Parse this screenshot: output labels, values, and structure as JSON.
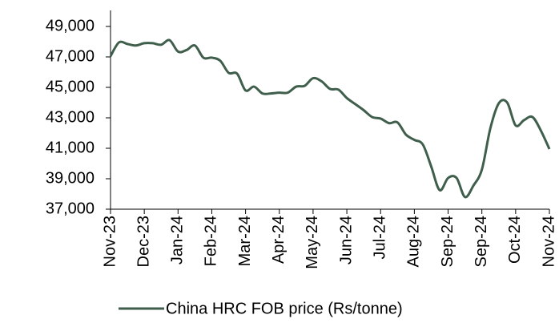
{
  "chart_data": {
    "type": "line",
    "categories": [
      "Nov-23",
      null,
      null,
      null,
      "Dec-23",
      null,
      null,
      null,
      "Jan-24",
      null,
      null,
      null,
      "Feb-24",
      null,
      null,
      null,
      "Mar-24",
      null,
      null,
      null,
      "Apr-24",
      null,
      null,
      null,
      "May-24",
      null,
      null,
      null,
      "Jun-24",
      null,
      null,
      null,
      "Jul-24",
      null,
      null,
      null,
      "Aug-24",
      null,
      null,
      null,
      "Sep-24",
      null,
      null,
      null,
      "Sep-24",
      null,
      null,
      null,
      "Oct-24",
      null,
      null,
      null,
      "Nov-24"
    ],
    "series": [
      {
        "name": "China HRC FOB price (Rs/tonne)",
        "color": "#3f5e4b",
        "values": [
          47050,
          47950,
          47850,
          47750,
          47900,
          47900,
          47800,
          48100,
          47350,
          47450,
          47750,
          46950,
          46950,
          46750,
          45950,
          45900,
          44800,
          45050,
          44600,
          44600,
          44650,
          44650,
          45050,
          45100,
          45600,
          45400,
          44900,
          44850,
          44300,
          43900,
          43500,
          43050,
          42950,
          42650,
          42700,
          41900,
          41550,
          41250,
          39800,
          38250,
          39050,
          39050,
          37800,
          38550,
          39600,
          42300,
          43950,
          44000,
          42500,
          42850,
          43050,
          42150,
          40950
        ]
      }
    ],
    "ylim": [
      37000,
      49000
    ],
    "yticks": [
      {
        "value": 37000,
        "label": "37,000"
      },
      {
        "value": 39000,
        "label": "39,000"
      },
      {
        "value": 41000,
        "label": "41,000"
      },
      {
        "value": 43000,
        "label": "43,000"
      },
      {
        "value": 45000,
        "label": "45,000"
      },
      {
        "value": 47000,
        "label": "47,000"
      },
      {
        "value": 49000,
        "label": "49,000"
      }
    ],
    "legend": "bottom"
  }
}
